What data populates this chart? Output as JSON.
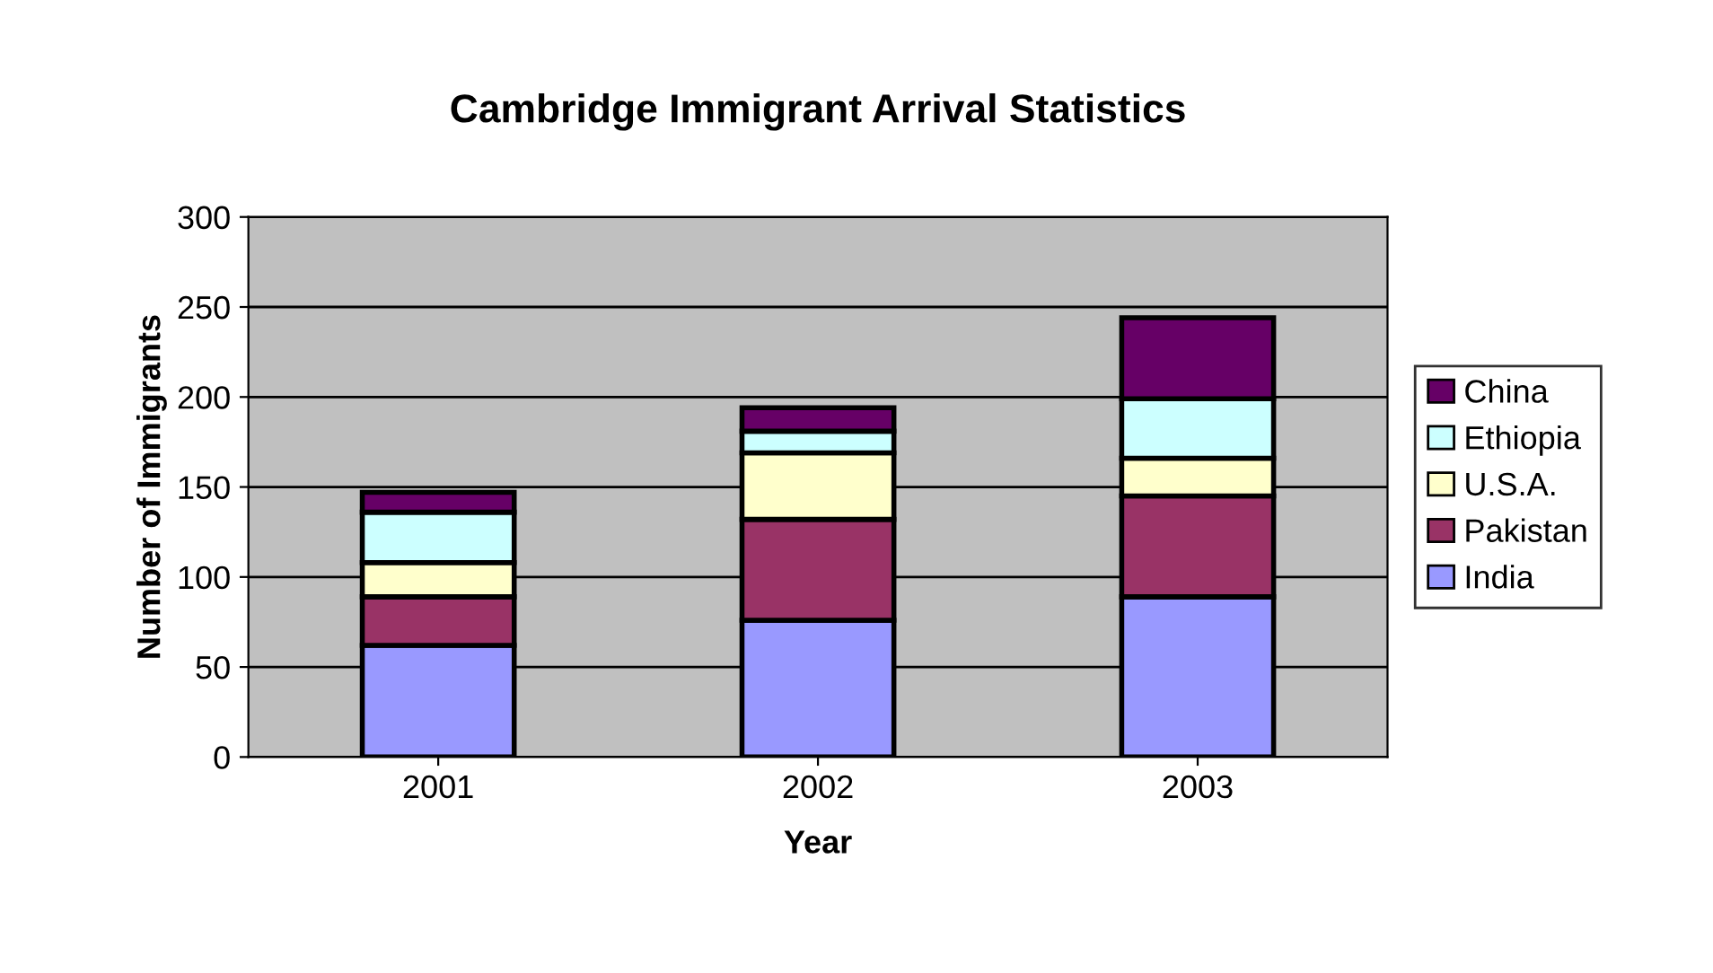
{
  "chart_data": {
    "type": "bar",
    "title": "Cambridge Immigrant Arrival Statistics",
    "xlabel": "Year",
    "ylabel": "Number of Immigrants",
    "categories": [
      "2001",
      "2002",
      "2003"
    ],
    "stacked": true,
    "series": [
      {
        "name": "India",
        "color": "#9999ff",
        "values": [
          62,
          76,
          89
        ]
      },
      {
        "name": "Pakistan",
        "color": "#993366",
        "values": [
          27,
          56,
          56
        ]
      },
      {
        "name": "U.S.A.",
        "color": "#ffffcc",
        "values": [
          19,
          37,
          21
        ]
      },
      {
        "name": "Ethiopia",
        "color": "#ccffff",
        "values": [
          28,
          12,
          33
        ]
      },
      {
        "name": "China",
        "color": "#660066",
        "values": [
          11,
          13,
          45
        ]
      }
    ],
    "ylim": [
      0,
      300
    ],
    "yticks": [
      0,
      50,
      100,
      150,
      200,
      250,
      300
    ],
    "grid": "y",
    "legend": "right"
  }
}
